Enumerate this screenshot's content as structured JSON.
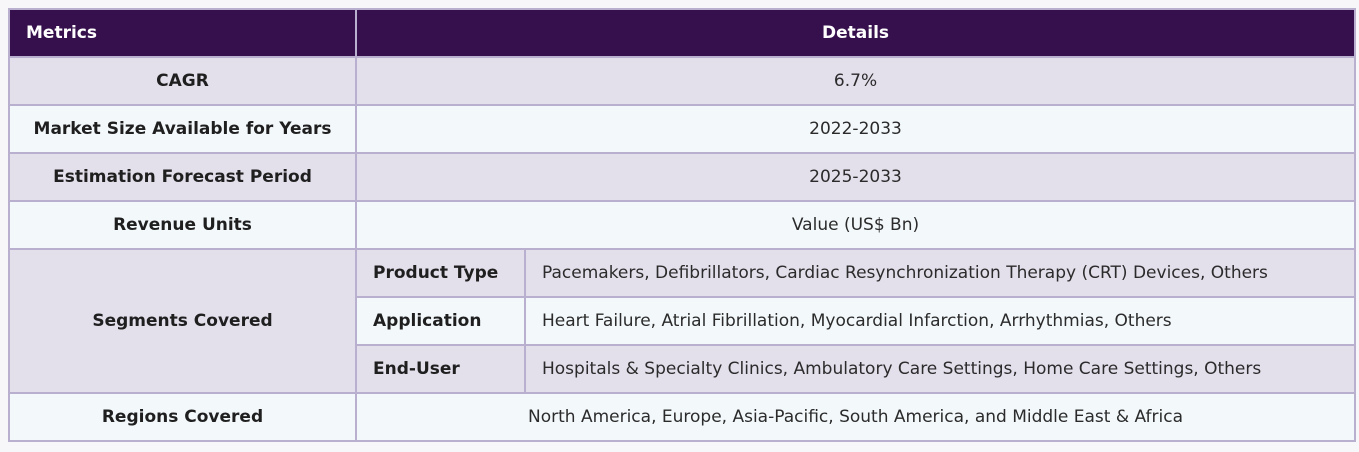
{
  "header": {
    "metrics": "Metrics",
    "details": "Details"
  },
  "rows": [
    {
      "metric": "CAGR",
      "value": "6.7%"
    },
    {
      "metric": "Market Size Available for Years",
      "value": "2022-2033"
    },
    {
      "metric": "Estimation Forecast Period",
      "value": "2025-2033"
    },
    {
      "metric": "Revenue Units",
      "value": "Value (US$ Bn)"
    }
  ],
  "segments": {
    "metric": "Segments Covered",
    "items": [
      {
        "label": "Product Type",
        "value": "Pacemakers, Defibrillators, Cardiac Resynchronization Therapy (CRT) Devices, Others"
      },
      {
        "label": "Application",
        "value": "Heart Failure, Atrial Fibrillation, Myocardial Infarction, Arrhythmias, Others"
      },
      {
        "label": "End-User",
        "value": "Hospitals & Specialty Clinics, Ambulatory Care Settings, Home Care Settings, Others"
      }
    ]
  },
  "regions": {
    "metric": "Regions Covered",
    "value": "North America, Europe, Asia-Pacific, South America, and Middle East & Africa"
  },
  "colors": {
    "header_bg": "#36104d",
    "shade_row": "#e3dfeb",
    "light_row": "#f3f8fb",
    "border": "#b9b0cf"
  }
}
